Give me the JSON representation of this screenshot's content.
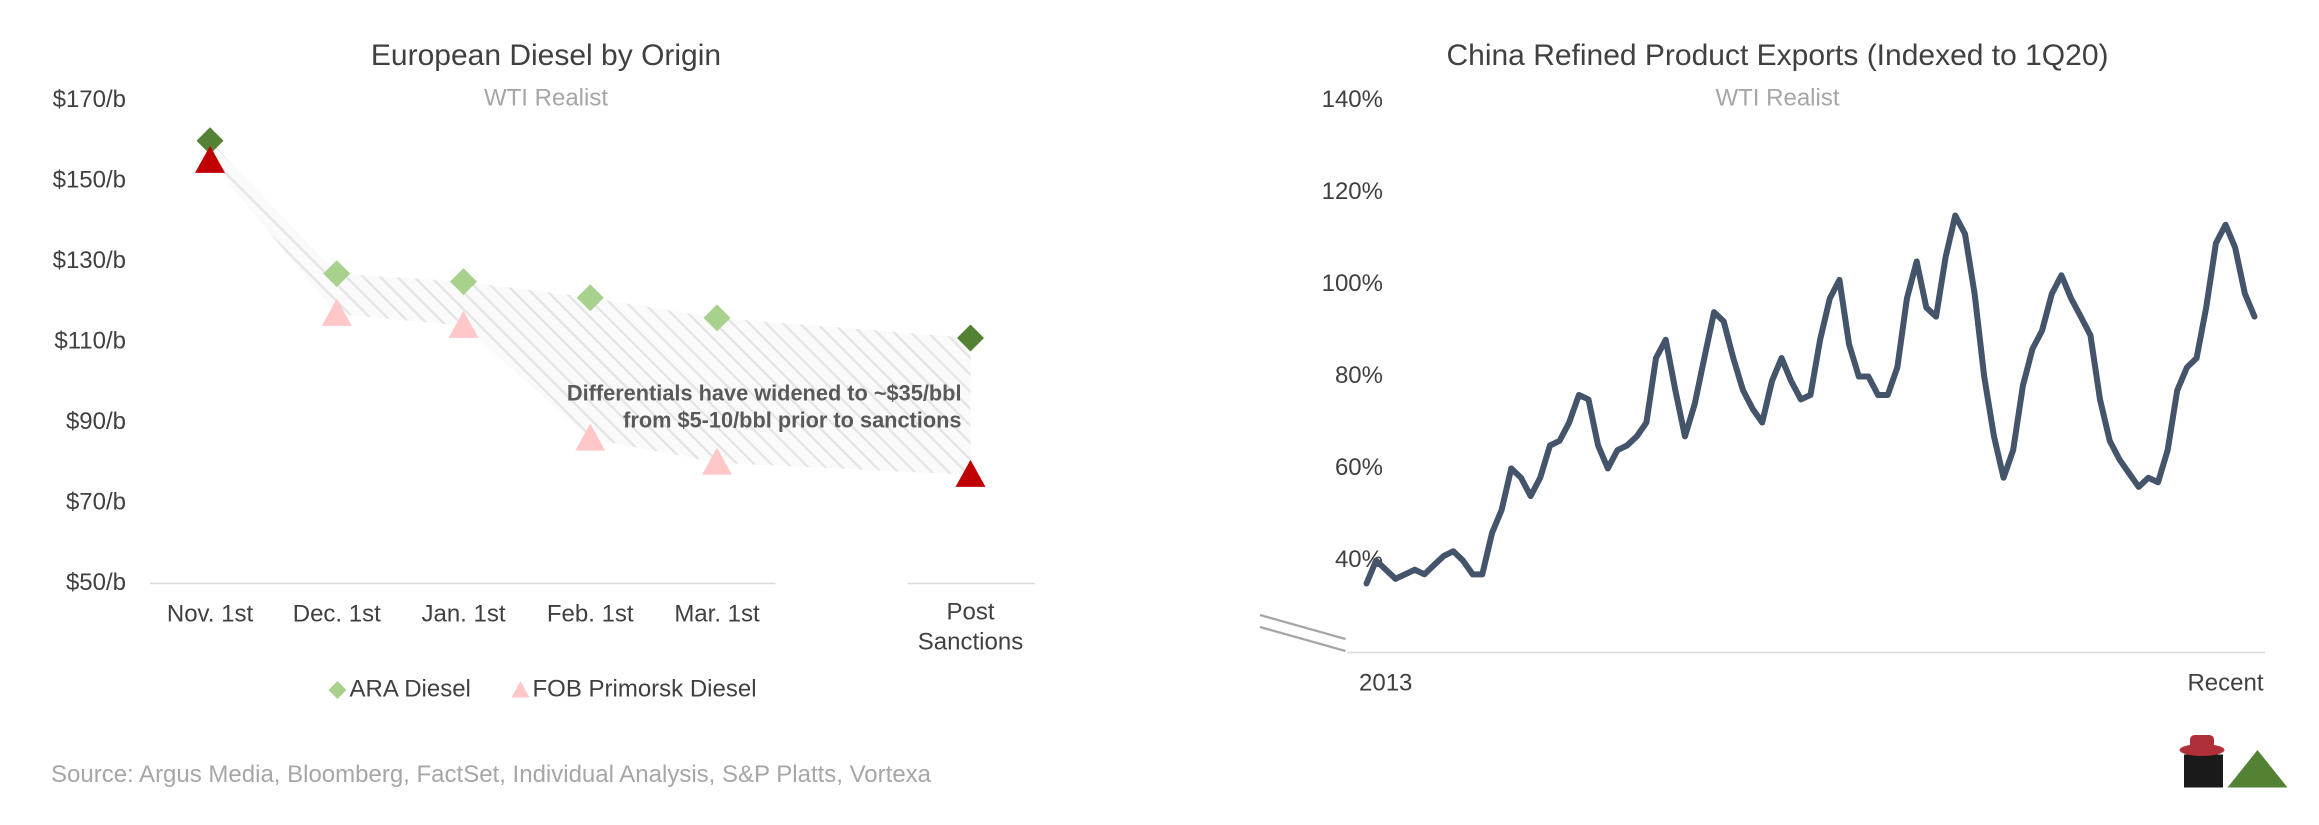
{
  "chart_data": [
    {
      "type": "scatter",
      "title": "European Diesel by Origin",
      "subtitle": "WTI Realist",
      "categories": [
        "Nov. 1st",
        "Dec. 1st",
        "Jan. 1st",
        "Feb. 1st",
        "Mar. 1st",
        "Post Sanctions"
      ],
      "series": [
        {
          "name": "ARA Diesel",
          "marker": "diamond",
          "color": "#a9d18e",
          "colors": [
            "#548235",
            "#a9d18e",
            "#a9d18e",
            "#a9d18e",
            "#a9d18e",
            "#548235"
          ],
          "values": [
            160,
            127,
            125,
            121,
            116,
            111
          ]
        },
        {
          "name": "FOB Primorsk Diesel",
          "marker": "triangle",
          "color": "#ffc7c7",
          "colors": [
            "#c00000",
            "#ffc7c7",
            "#ffc7c7",
            "#ffc7c7",
            "#ffc7c7",
            "#c00000"
          ],
          "values": [
            155,
            117,
            114,
            86,
            80,
            77
          ]
        }
      ],
      "ylim": [
        50,
        170
      ],
      "yticks": [
        {
          "value": 50,
          "label": "$50/b"
        },
        {
          "value": 70,
          "label": "$70/b"
        },
        {
          "value": 90,
          "label": "$90/b"
        },
        {
          "value": 110,
          "label": "$110/b"
        },
        {
          "value": 130,
          "label": "$130/b"
        },
        {
          "value": 150,
          "label": "$150/b"
        },
        {
          "value": 170,
          "label": "$170/b"
        }
      ],
      "annotation": [
        "Differentials  have widened to ~$35/bbl",
        "from $5-10/bbl prior to sanctions"
      ],
      "legend": "bottom"
    },
    {
      "type": "line",
      "title": "China Refined Product Exports (Indexed to 1Q20)",
      "subtitle": "WTI Realist",
      "categories": [
        "2013",
        null,
        null,
        null,
        null,
        null,
        null,
        null,
        null,
        null,
        null,
        null,
        null,
        null,
        null,
        null,
        null,
        null,
        null,
        null,
        null,
        null,
        null,
        null,
        null,
        null,
        null,
        null,
        null,
        null,
        null,
        null,
        null,
        null,
        null,
        null,
        null,
        null,
        null,
        null,
        null,
        null,
        null,
        null,
        null,
        null,
        null,
        null,
        null,
        null,
        null,
        null,
        null,
        null,
        null,
        null,
        null,
        null,
        null,
        null,
        null,
        null,
        null,
        null,
        null,
        null,
        null,
        null,
        null,
        null,
        null,
        null,
        null,
        null,
        null,
        null,
        null,
        null,
        null,
        null,
        null,
        null,
        null,
        null,
        null,
        null,
        null,
        null,
        null,
        null,
        null,
        null,
        "Recent"
      ],
      "series": [
        {
          "name": "China Refined Product Exports",
          "color": "#44546a",
          "values": [
            35,
            40,
            38,
            36,
            37,
            38,
            37,
            39,
            41,
            42,
            40,
            37,
            37,
            46,
            51,
            60,
            58,
            54,
            58,
            65,
            66,
            70,
            76,
            75,
            65,
            60,
            64,
            65,
            67,
            70,
            84,
            88,
            77,
            67,
            74,
            84,
            94,
            92,
            84,
            77,
            73,
            70,
            79,
            84,
            79,
            75,
            76,
            88,
            97,
            101,
            87,
            80,
            80,
            76,
            76,
            82,
            97,
            105,
            95,
            93,
            106,
            115,
            111,
            98,
            80,
            67,
            58,
            64,
            78,
            86,
            90,
            98,
            102,
            97,
            93,
            89,
            75,
            66,
            62,
            59,
            56,
            58,
            57,
            64,
            77,
            82,
            84,
            95,
            109,
            113,
            108,
            98,
            93
          ]
        }
      ],
      "ylim": [
        20,
        140
      ],
      "yticks": [
        {
          "value": 40,
          "label": "40%"
        },
        {
          "value": 60,
          "label": "60%"
        },
        {
          "value": 80,
          "label": "80%"
        },
        {
          "value": 100,
          "label": "100%"
        },
        {
          "value": 120,
          "label": "120%"
        },
        {
          "value": 140,
          "label": "140%"
        }
      ]
    }
  ],
  "source": "Source: Argus Media, Bloomberg, FactSet, Individual Analysis, S&P Platts, Vortexa"
}
